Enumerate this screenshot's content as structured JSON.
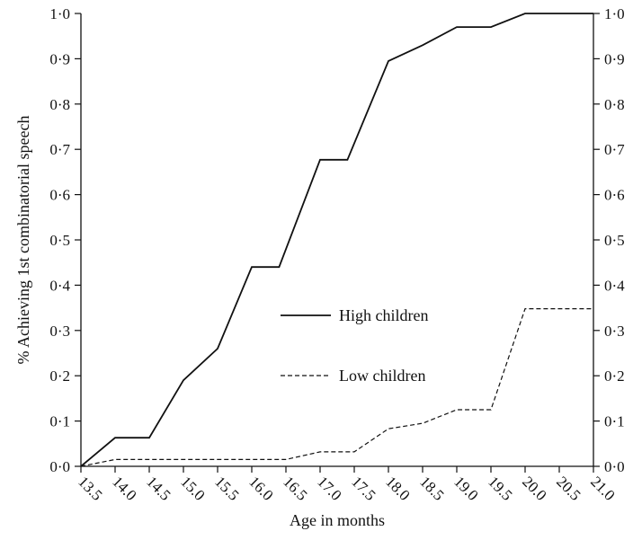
{
  "chart_data": {
    "type": "line",
    "xlabel": "Age in months",
    "ylabel": "% Achieving 1st combinatorial speech",
    "x_ticks": [
      "13.5",
      "14.0",
      "14.5",
      "15.0",
      "15.5",
      "16.0",
      "16.5",
      "17.0",
      "17.5",
      "18.0",
      "18.5",
      "19.0",
      "19.5",
      "20.0",
      "20.5",
      "21.0"
    ],
    "y_ticks": [
      "0·0",
      "0·1",
      "0·2",
      "0·3",
      "0·4",
      "0·5",
      "0·6",
      "0·7",
      "0·8",
      "0·9",
      "1·0"
    ],
    "xlim": [
      13.5,
      21.0
    ],
    "ylim": [
      0,
      1.0
    ],
    "grid": false,
    "legend_position": "center",
    "series": [
      {
        "name": "High children",
        "line_style": "solid",
        "color": "#111111",
        "points": [
          [
            13.5,
            0.0
          ],
          [
            14.0,
            0.063
          ],
          [
            14.5,
            0.063
          ],
          [
            15.0,
            0.19
          ],
          [
            15.5,
            0.26
          ],
          [
            16.0,
            0.44
          ],
          [
            16.4,
            0.44
          ],
          [
            17.0,
            0.677
          ],
          [
            17.4,
            0.677
          ],
          [
            18.0,
            0.895
          ],
          [
            18.5,
            0.93
          ],
          [
            19.0,
            0.97
          ],
          [
            19.5,
            0.97
          ],
          [
            20.0,
            1.0
          ],
          [
            20.5,
            1.0
          ],
          [
            21.0,
            1.0
          ]
        ]
      },
      {
        "name": "Low children",
        "line_style": "dashed",
        "color": "#111111",
        "points": [
          [
            13.5,
            0.0
          ],
          [
            14.0,
            0.015
          ],
          [
            14.5,
            0.015
          ],
          [
            15.0,
            0.015
          ],
          [
            15.5,
            0.015
          ],
          [
            16.0,
            0.015
          ],
          [
            16.5,
            0.015
          ],
          [
            17.0,
            0.032
          ],
          [
            17.5,
            0.032
          ],
          [
            18.0,
            0.083
          ],
          [
            18.5,
            0.095
          ],
          [
            19.0,
            0.125
          ],
          [
            19.5,
            0.125
          ],
          [
            20.0,
            0.348
          ],
          [
            20.5,
            0.348
          ],
          [
            21.0,
            0.348
          ]
        ]
      }
    ]
  }
}
